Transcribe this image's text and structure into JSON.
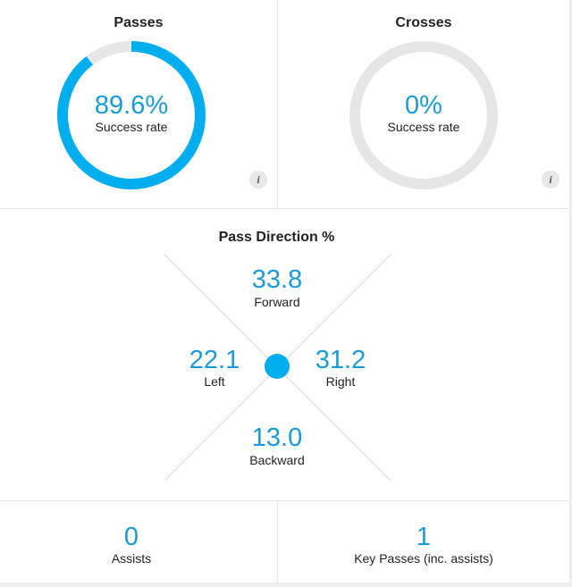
{
  "passes": {
    "title": "Passes",
    "value": "89.6%",
    "label": "Success rate",
    "fill_fraction": 0.896,
    "info_icon": "i"
  },
  "crosses": {
    "title": "Crosses",
    "value": "0%",
    "label": "Success rate",
    "fill_fraction": 0,
    "info_icon": "i"
  },
  "pass_direction": {
    "title": "Pass Direction %",
    "forward": {
      "value": "33.8",
      "label": "Forward"
    },
    "left": {
      "value": "22.1",
      "label": "Left"
    },
    "right": {
      "value": "31.2",
      "label": "Right"
    },
    "backward": {
      "value": "13.0",
      "label": "Backward"
    }
  },
  "assists": {
    "value": "0",
    "label": "Assists"
  },
  "key_passes": {
    "value": "1",
    "label": "Key Passes (inc. assists)"
  },
  "colors": {
    "accent": "#00adef",
    "track": "#e6e6e6",
    "divider": "#e3e3e3",
    "value_text": "#1b9ad6"
  }
}
